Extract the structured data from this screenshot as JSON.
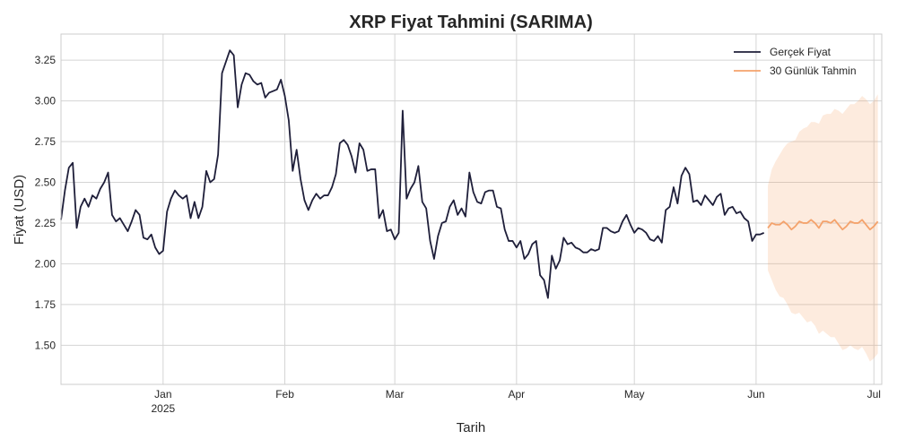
{
  "chart_data": {
    "type": "line",
    "title": "XRP Fiyat Tahmini (SARIMA)",
    "xlabel": "Tarih",
    "ylabel": "Fiyat (USD)",
    "x_range": [
      "2024-12-06",
      "2025-07-03"
    ],
    "ylim": [
      1.26,
      3.41
    ],
    "grid": true,
    "legend_position": "top-right",
    "x_ticks": [
      {
        "date": "2025-01-01",
        "label": "Jan",
        "sublabel": "2025"
      },
      {
        "date": "2025-02-01",
        "label": "Feb",
        "sublabel": ""
      },
      {
        "date": "2025-03-01",
        "label": "Mar",
        "sublabel": ""
      },
      {
        "date": "2025-04-01",
        "label": "Apr",
        "sublabel": ""
      },
      {
        "date": "2025-05-01",
        "label": "May",
        "sublabel": ""
      },
      {
        "date": "2025-06-01",
        "label": "Jun",
        "sublabel": ""
      },
      {
        "date": "2025-07-01",
        "label": "Jul",
        "sublabel": ""
      }
    ],
    "y_ticks": [
      {
        "value": 1.5,
        "label": "1.50"
      },
      {
        "value": 1.75,
        "label": "1.75"
      },
      {
        "value": 2.0,
        "label": "2.00"
      },
      {
        "value": 2.25,
        "label": "2.25"
      },
      {
        "value": 2.5,
        "label": "2.50"
      },
      {
        "value": 2.75,
        "label": "2.75"
      },
      {
        "value": 3.0,
        "label": "3.00"
      },
      {
        "value": 3.25,
        "label": "3.25"
      }
    ],
    "series": [
      {
        "name": "Gerçek Fiyat",
        "color": "#1f1f3a",
        "start_date": "2024-12-06",
        "values": [
          2.27,
          2.45,
          2.59,
          2.62,
          2.22,
          2.35,
          2.4,
          2.35,
          2.42,
          2.4,
          2.46,
          2.5,
          2.56,
          2.3,
          2.26,
          2.28,
          2.24,
          2.2,
          2.26,
          2.33,
          2.3,
          2.16,
          2.15,
          2.18,
          2.1,
          2.06,
          2.08,
          2.32,
          2.4,
          2.45,
          2.42,
          2.4,
          2.42,
          2.28,
          2.38,
          2.28,
          2.35,
          2.57,
          2.5,
          2.52,
          2.67,
          3.17,
          3.24,
          3.31,
          3.28,
          2.96,
          3.1,
          3.17,
          3.16,
          3.12,
          3.1,
          3.11,
          3.02,
          3.05,
          3.06,
          3.07,
          3.13,
          3.03,
          2.88,
          2.57,
          2.7,
          2.52,
          2.39,
          2.33,
          2.39,
          2.43,
          2.4,
          2.42,
          2.42,
          2.47,
          2.55,
          2.74,
          2.76,
          2.73,
          2.66,
          2.56,
          2.74,
          2.7,
          2.57,
          2.58,
          2.58,
          2.28,
          2.33,
          2.2,
          2.21,
          2.15,
          2.19,
          2.94,
          2.4,
          2.46,
          2.5,
          2.6,
          2.38,
          2.34,
          2.14,
          2.03,
          2.17,
          2.25,
          2.26,
          2.35,
          2.39,
          2.3,
          2.34,
          2.29,
          2.56,
          2.44,
          2.38,
          2.37,
          2.44,
          2.45,
          2.45,
          2.35,
          2.34,
          2.21,
          2.14,
          2.14,
          2.1,
          2.14,
          2.03,
          2.06,
          2.12,
          2.14,
          1.93,
          1.9,
          1.79,
          2.05,
          1.97,
          2.02,
          2.16,
          2.12,
          2.13,
          2.1,
          2.09,
          2.07,
          2.07,
          2.09,
          2.08,
          2.09,
          2.22,
          2.22,
          2.2,
          2.19,
          2.2,
          2.26,
          2.3,
          2.24,
          2.19,
          2.22,
          2.21,
          2.19,
          2.15,
          2.14,
          2.17,
          2.13,
          2.33,
          2.35,
          2.47,
          2.37,
          2.54,
          2.59,
          2.55,
          2.38,
          2.39,
          2.36,
          2.42,
          2.39,
          2.36,
          2.41,
          2.43,
          2.3,
          2.34,
          2.35,
          2.31,
          2.32,
          2.28,
          2.26,
          2.14,
          2.18,
          2.18,
          2.19
        ]
      },
      {
        "name": "30 Günlük Tahmin",
        "color": "#f4a26b",
        "start_date": "2025-06-04",
        "values": [
          2.22,
          2.25,
          2.24,
          2.24,
          2.26,
          2.24,
          2.21,
          2.23,
          2.26,
          2.25,
          2.25,
          2.27,
          2.25,
          2.22,
          2.26,
          2.26,
          2.25,
          2.27,
          2.24,
          2.21,
          2.23,
          2.26,
          2.25,
          2.25,
          2.27,
          2.24,
          2.21,
          2.23,
          2.26
        ],
        "upper": [
          2.48,
          2.58,
          2.63,
          2.67,
          2.71,
          2.74,
          2.75,
          2.76,
          2.81,
          2.83,
          2.84,
          2.87,
          2.87,
          2.86,
          2.91,
          2.92,
          2.92,
          2.95,
          2.94,
          2.92,
          2.95,
          2.98,
          2.98,
          3.0,
          3.03,
          3.01,
          2.98,
          3.0,
          3.04
        ],
        "lower": [
          1.96,
          1.9,
          1.84,
          1.8,
          1.79,
          1.75,
          1.7,
          1.69,
          1.7,
          1.67,
          1.64,
          1.65,
          1.62,
          1.57,
          1.59,
          1.57,
          1.55,
          1.55,
          1.51,
          1.47,
          1.48,
          1.5,
          1.48,
          1.47,
          1.49,
          1.45,
          1.4,
          1.42,
          1.45
        ]
      }
    ]
  }
}
